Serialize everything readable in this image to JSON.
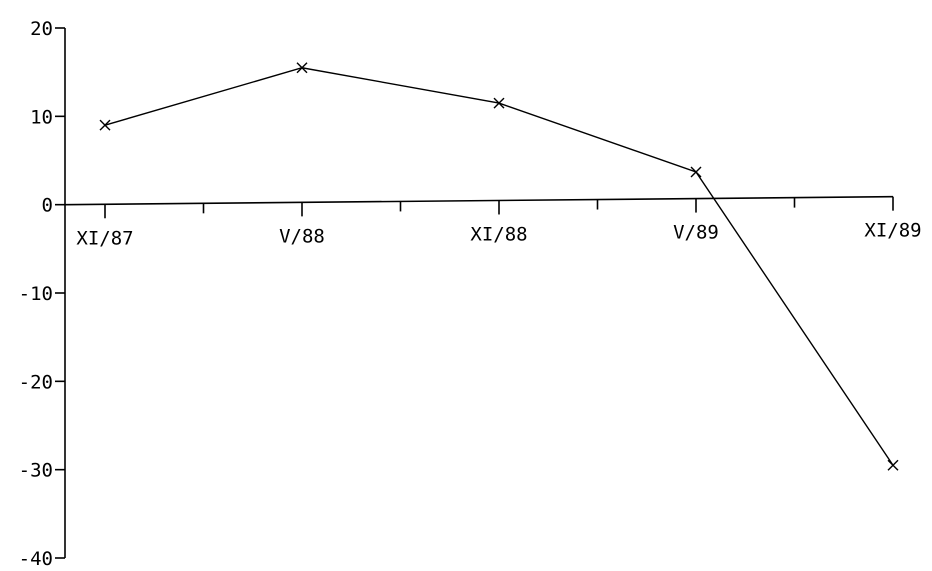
{
  "chart_data": {
    "type": "line",
    "title": "",
    "xlabel": "",
    "ylabel": "",
    "grid": false,
    "legend": "none",
    "colors": {
      "line": "#000000",
      "background": "#ffffff"
    },
    "marker": "x",
    "categories": [
      "XI/87",
      "V/88",
      "XI/88",
      "V/89",
      "XI/89"
    ],
    "minor_ticks": 4,
    "ylim": [
      -40,
      20
    ],
    "yticks": [
      20,
      10,
      0,
      -10,
      -20,
      -30,
      -40
    ],
    "ytick_labels": [
      "20",
      "10",
      "0",
      "-10",
      "-20",
      "-30",
      "-40"
    ],
    "series": [
      {
        "values": [
          9,
          15.5,
          11.5,
          3.7,
          -29.5
        ]
      }
    ]
  }
}
